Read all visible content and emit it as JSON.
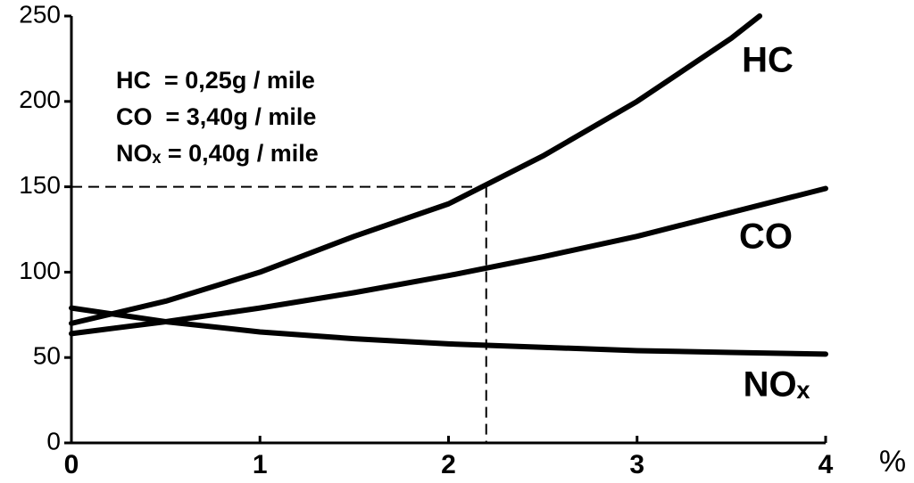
{
  "chart_data": {
    "type": "line",
    "xlim": [
      0,
      4
    ],
    "xticks": [
      0,
      1,
      2,
      3,
      4
    ],
    "xlabel": "%",
    "ylim": [
      0,
      250
    ],
    "yticks": [
      0,
      50,
      100,
      150,
      200,
      250
    ],
    "grid": false,
    "series": [
      {
        "name": "HC",
        "color": "#000000",
        "x": [
          0,
          0.5,
          1,
          1.5,
          2,
          2.5,
          3,
          3.5,
          3.65
        ],
        "values": [
          70,
          83,
          100,
          121,
          140,
          168,
          200,
          237,
          250
        ]
      },
      {
        "name": "CO",
        "color": "#000000",
        "x": [
          0,
          0.5,
          1,
          1.5,
          2,
          2.5,
          3,
          3.5,
          4
        ],
        "values": [
          64,
          71,
          79,
          88,
          98,
          109,
          121,
          135,
          149
        ]
      },
      {
        "name": "NOₓ",
        "color": "#000000",
        "x": [
          0,
          0.5,
          1,
          1.5,
          2,
          2.5,
          3,
          3.5,
          4
        ],
        "values": [
          79,
          71,
          65,
          61,
          58,
          56,
          54,
          53,
          52
        ]
      }
    ],
    "annotations": [
      "HC  = 0,25g / mile",
      "CO  = 3,40g / mile",
      "NOₓ = 0,40g / mile"
    ],
    "reference": {
      "x": 2.2,
      "y": 150
    }
  }
}
